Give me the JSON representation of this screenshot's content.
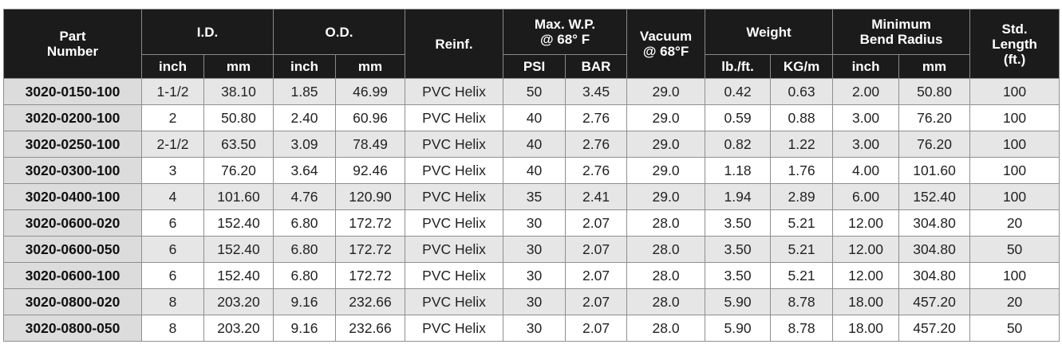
{
  "header": {
    "part_number": "Part\nNumber",
    "id": "I.D.",
    "od": "O.D.",
    "reinf": "Reinf.",
    "max_wp": "Max. W.P.\n@ 68° F",
    "vacuum": "Vacuum\n@ 68°F",
    "weight": "Weight",
    "min_bend_radius": "Minimum\nBend Radius",
    "std_length": "Std.\nLength\n(ft.)",
    "id_inch": "inch",
    "id_mm": "mm",
    "od_inch": "inch",
    "od_mm": "mm",
    "psi": "PSI",
    "bar": "BAR",
    "lb_ft": "lb./ft.",
    "kg_m": "KG/m",
    "bend_inch": "inch",
    "bend_mm": "mm"
  },
  "rows": [
    [
      "3020-0150-100",
      "1-1/2",
      "38.10",
      "1.85",
      "46.99",
      "PVC Helix",
      "50",
      "3.45",
      "29.0",
      "0.42",
      "0.63",
      "2.00",
      "50.80",
      "100"
    ],
    [
      "3020-0200-100",
      "2",
      "50.80",
      "2.40",
      "60.96",
      "PVC Helix",
      "40",
      "2.76",
      "29.0",
      "0.59",
      "0.88",
      "3.00",
      "76.20",
      "100"
    ],
    [
      "3020-0250-100",
      "2-1/2",
      "63.50",
      "3.09",
      "78.49",
      "PVC Helix",
      "40",
      "2.76",
      "29.0",
      "0.82",
      "1.22",
      "3.00",
      "76.20",
      "100"
    ],
    [
      "3020-0300-100",
      "3",
      "76.20",
      "3.64",
      "92.46",
      "PVC Helix",
      "40",
      "2.76",
      "29.0",
      "1.18",
      "1.76",
      "4.00",
      "101.60",
      "100"
    ],
    [
      "3020-0400-100",
      "4",
      "101.60",
      "4.76",
      "120.90",
      "PVC Helix",
      "35",
      "2.41",
      "29.0",
      "1.94",
      "2.89",
      "6.00",
      "152.40",
      "100"
    ],
    [
      "3020-0600-020",
      "6",
      "152.40",
      "6.80",
      "172.72",
      "PVC Helix",
      "30",
      "2.07",
      "28.0",
      "3.50",
      "5.21",
      "12.00",
      "304.80",
      "20"
    ],
    [
      "3020-0600-050",
      "6",
      "152.40",
      "6.80",
      "172.72",
      "PVC Helix",
      "30",
      "2.07",
      "28.0",
      "3.50",
      "5.21",
      "12.00",
      "304.80",
      "50"
    ],
    [
      "3020-0600-100",
      "6",
      "152.40",
      "6.80",
      "172.72",
      "PVC Helix",
      "30",
      "2.07",
      "28.0",
      "3.50",
      "5.21",
      "12.00",
      "304.80",
      "100"
    ],
    [
      "3020-0800-020",
      "8",
      "203.20",
      "9.16",
      "232.66",
      "PVC Helix",
      "30",
      "2.07",
      "28.0",
      "5.90",
      "8.78",
      "18.00",
      "457.20",
      "20"
    ],
    [
      "3020-0800-050",
      "8",
      "203.20",
      "9.16",
      "232.66",
      "PVC Helix",
      "30",
      "2.07",
      "28.0",
      "5.90",
      "8.78",
      "18.00",
      "457.20",
      "50"
    ]
  ]
}
